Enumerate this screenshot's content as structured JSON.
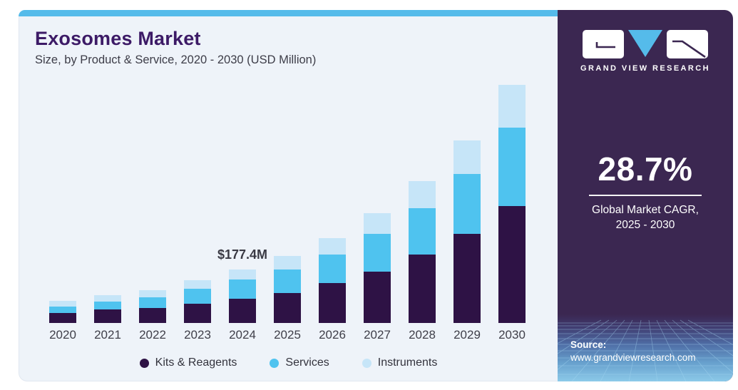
{
  "header": {
    "title": "Exosomes Market",
    "subtitle": "Size, by Product & Service, 2020 - 2030 (USD Million)"
  },
  "chart_data": {
    "type": "bar",
    "stacked": true,
    "categories": [
      "2020",
      "2021",
      "2022",
      "2023",
      "2024",
      "2025",
      "2026",
      "2027",
      "2028",
      "2029",
      "2030"
    ],
    "series": [
      {
        "name": "Kits & Reagents",
        "color": "#2e1245",
        "values": [
          33,
          44,
          49,
          64,
          81,
          100,
          132,
          171,
          226,
          295,
          388
        ]
      },
      {
        "name": "Services",
        "color": "#4fc3ef",
        "values": [
          22,
          28,
          36,
          49,
          64,
          78,
          95,
          124,
          155,
          199,
          260
        ]
      },
      {
        "name": "Instruments",
        "color": "#c6e5f8",
        "values": [
          19,
          21,
          25,
          28,
          32.4,
          44,
          55,
          69,
          89,
          112,
          142
        ]
      }
    ],
    "totals_note": "values estimated from bar heights; 2024 total labeled $177.4M",
    "annotation": {
      "year": "2024",
      "text": "$177.4M"
    },
    "title": "Exosomes Market Size, by Product & Service, 2020 - 2030 (USD Million)",
    "xlabel": "",
    "ylabel": "USD Million",
    "legend_position": "bottom",
    "grid": false,
    "axes_visible": false
  },
  "sidebar": {
    "brand": "GRAND VIEW RESEARCH",
    "cagr_value": "28.7%",
    "cagr_label_line1": "Global Market CAGR,",
    "cagr_label_line2": "2025 - 2030",
    "source_label": "Source:",
    "source_url": "www.grandviewresearch.com"
  },
  "colors": {
    "accent": "#55bbea",
    "panel_bg": "#eef3f9",
    "sidebar_bg": "#3b2751",
    "title_color": "#3c1a66",
    "kits": "#2e1245",
    "services": "#4fc3ef",
    "instruments": "#c6e5f8"
  }
}
